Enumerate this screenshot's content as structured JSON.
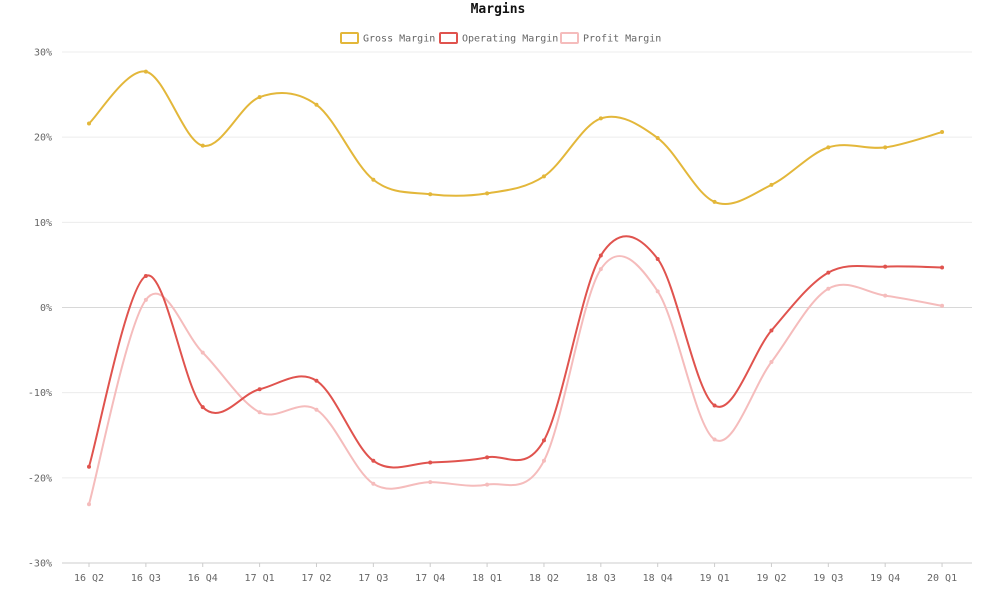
{
  "chart_data": {
    "type": "line",
    "title": "Margins",
    "xlabel": "",
    "ylabel": "",
    "ylim": [
      -30,
      30
    ],
    "y_ticks": [
      30,
      20,
      10,
      0,
      -10,
      -20,
      -30
    ],
    "y_tick_labels": [
      "30%",
      "20%",
      "10%",
      "0%",
      "-10%",
      "-20%",
      "-30%"
    ],
    "grid": true,
    "legend_position": "top-center",
    "categories": [
      "16 Q2",
      "16 Q3",
      "16 Q4",
      "17 Q1",
      "17 Q2",
      "17 Q3",
      "17 Q4",
      "18 Q1",
      "18 Q2",
      "18 Q3",
      "18 Q4",
      "19 Q1",
      "19 Q2",
      "19 Q3",
      "19 Q4",
      "20 Q1"
    ],
    "series": [
      {
        "name": "Gross Margin",
        "color": "#e3b73a",
        "values": [
          21.6,
          27.7,
          19.0,
          24.7,
          23.8,
          15.0,
          13.3,
          13.4,
          15.4,
          22.2,
          19.9,
          12.4,
          14.4,
          18.8,
          18.8,
          20.6
        ]
      },
      {
        "name": "Operating Margin",
        "color": "#e0534e",
        "values": [
          -18.7,
          3.7,
          -11.7,
          -9.6,
          -8.6,
          -18.0,
          -18.2,
          -17.6,
          -15.6,
          6.1,
          5.7,
          -11.5,
          -2.7,
          4.1,
          4.8,
          4.7
        ]
      },
      {
        "name": "Profit Margin",
        "color": "#f5bcbc",
        "values": [
          -23.1,
          0.9,
          -5.3,
          -12.3,
          -12.0,
          -20.7,
          -20.5,
          -20.8,
          -18.0,
          4.5,
          1.9,
          -15.5,
          -6.4,
          2.2,
          1.4,
          0.2
        ]
      }
    ]
  }
}
